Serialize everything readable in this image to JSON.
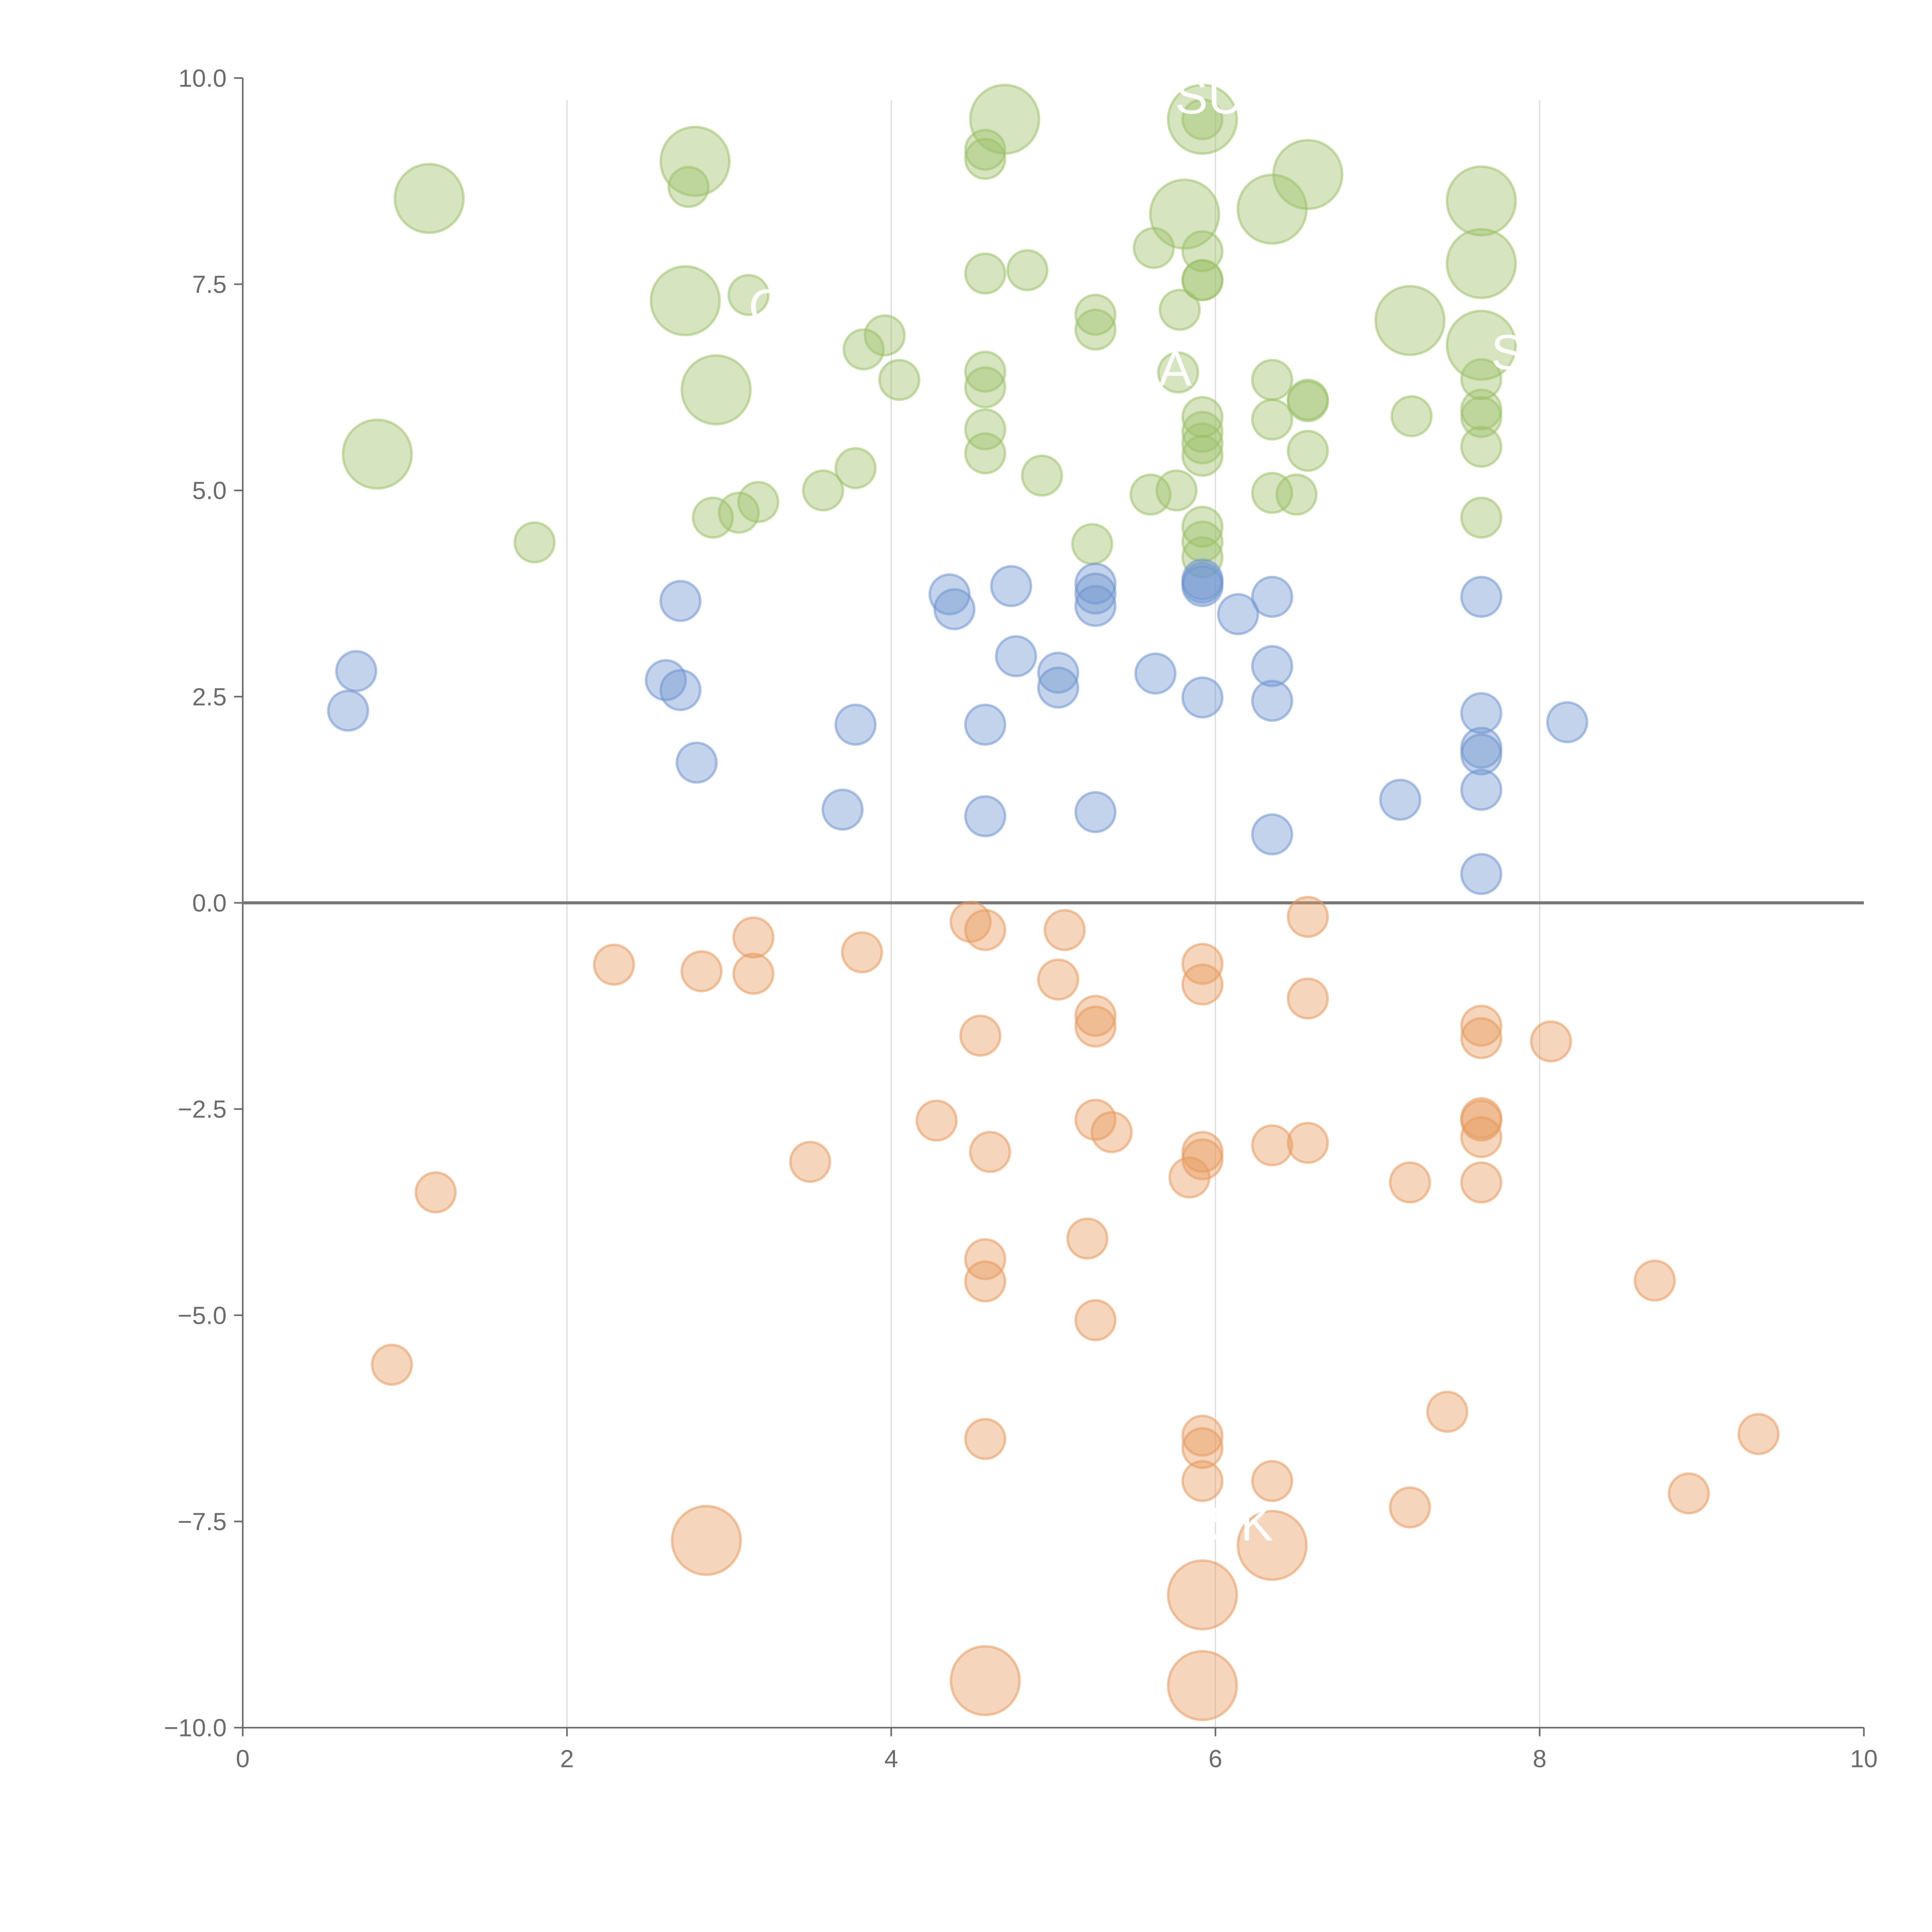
{
  "chart_data": {
    "type": "scatter",
    "title": "",
    "xlabel": "",
    "ylabel": "",
    "xlim": [
      0,
      10
    ],
    "ylim": [
      -10,
      10
    ],
    "x_ticks": [
      "0",
      "2",
      "4",
      "6",
      "8",
      "10"
    ],
    "y_ticks": [
      "10.0",
      "7.5",
      "5.0",
      "2.5",
      "0.0",
      "−2.5",
      "−5.0",
      "−7.5",
      "−10.0"
    ],
    "grid": "vertical",
    "legend": "none",
    "size_note": "point size 1 = small bubble, 3 = large bubble",
    "series": [
      {
        "name": "green",
        "color": "#9dc16a",
        "points": [
          [
            1.15,
            8.54,
            3
          ],
          [
            0.83,
            5.44,
            3
          ],
          [
            1.8,
            4.37,
            1
          ],
          [
            2.75,
            8.68,
            1
          ],
          [
            2.79,
            8.99,
            3
          ],
          [
            2.73,
            7.3,
            3
          ],
          [
            2.92,
            6.22,
            3
          ],
          [
            3.12,
            7.37,
            1
          ],
          [
            2.9,
            4.67,
            1
          ],
          [
            3.06,
            4.73,
            1
          ],
          [
            3.18,
            4.86,
            1
          ],
          [
            3.58,
            5.0,
            1
          ],
          [
            3.78,
            5.27,
            1
          ],
          [
            3.83,
            6.71,
            1
          ],
          [
            3.96,
            6.88,
            1
          ],
          [
            4.05,
            6.34,
            1
          ],
          [
            4.58,
            9.13,
            1
          ],
          [
            4.58,
            9.02,
            1
          ],
          [
            4.7,
            9.5,
            3
          ],
          [
            4.58,
            7.63,
            1
          ],
          [
            4.84,
            7.67,
            1
          ],
          [
            4.58,
            6.44,
            1
          ],
          [
            4.58,
            6.25,
            1
          ],
          [
            4.58,
            5.74,
            1
          ],
          [
            4.58,
            5.45,
            1
          ],
          [
            4.93,
            5.18,
            1
          ],
          [
            5.26,
            7.13,
            1
          ],
          [
            5.26,
            6.95,
            1
          ],
          [
            5.24,
            4.35,
            1
          ],
          [
            5.62,
            7.94,
            1
          ],
          [
            5.81,
            8.35,
            3
          ],
          [
            5.78,
            7.19,
            1
          ],
          [
            5.77,
            6.43,
            1
          ],
          [
            5.6,
            4.95,
            1
          ],
          [
            5.76,
            5.0,
            1
          ],
          [
            5.92,
            9.5,
            3
          ],
          [
            5.92,
            9.5,
            1
          ],
          [
            5.92,
            7.9,
            1
          ],
          [
            5.92,
            7.55,
            1
          ],
          [
            5.92,
            7.55,
            1
          ],
          [
            5.92,
            5.89,
            1
          ],
          [
            5.92,
            5.71,
            1
          ],
          [
            5.92,
            5.57,
            1
          ],
          [
            5.92,
            5.42,
            1
          ],
          [
            5.92,
            4.56,
            1
          ],
          [
            5.92,
            4.38,
            1
          ],
          [
            5.92,
            4.19,
            1
          ],
          [
            6.35,
            8.41,
            3
          ],
          [
            6.57,
            8.83,
            3
          ],
          [
            6.35,
            6.34,
            1
          ],
          [
            6.35,
            5.86,
            1
          ],
          [
            6.35,
            4.97,
            1
          ],
          [
            6.5,
            4.95,
            1
          ],
          [
            6.57,
            6.1,
            1
          ],
          [
            6.57,
            6.08,
            1
          ],
          [
            6.57,
            5.48,
            1
          ],
          [
            7.2,
            7.06,
            3
          ],
          [
            7.21,
            5.9,
            1
          ],
          [
            7.64,
            8.51,
            3
          ],
          [
            7.64,
            7.75,
            3
          ],
          [
            7.64,
            6.76,
            3
          ],
          [
            7.64,
            6.35,
            1
          ],
          [
            7.64,
            5.98,
            1
          ],
          [
            7.64,
            5.89,
            1
          ],
          [
            7.64,
            5.53,
            1
          ],
          [
            7.64,
            4.67,
            1
          ]
        ]
      },
      {
        "name": "blue",
        "color": "#6f95cf",
        "points": [
          [
            0.7,
            2.81,
            1
          ],
          [
            0.65,
            2.33,
            1
          ],
          [
            2.7,
            3.66,
            1
          ],
          [
            2.61,
            2.7,
            1
          ],
          [
            2.7,
            2.58,
            1
          ],
          [
            2.8,
            1.7,
            1
          ],
          [
            3.78,
            2.16,
            1
          ],
          [
            3.7,
            1.13,
            1
          ],
          [
            4.36,
            3.74,
            1
          ],
          [
            4.39,
            3.56,
            1
          ],
          [
            4.74,
            3.84,
            1
          ],
          [
            4.77,
            2.99,
            1
          ],
          [
            5.03,
            2.79,
            1
          ],
          [
            5.03,
            2.61,
            1
          ],
          [
            4.58,
            2.16,
            1
          ],
          [
            4.58,
            1.05,
            1
          ],
          [
            5.26,
            3.87,
            1
          ],
          [
            5.26,
            3.75,
            1
          ],
          [
            5.26,
            3.6,
            1
          ],
          [
            5.26,
            1.1,
            1
          ],
          [
            5.63,
            2.78,
            1
          ],
          [
            5.92,
            3.92,
            1
          ],
          [
            5.92,
            3.84,
            1
          ],
          [
            5.92,
            3.88,
            1
          ],
          [
            5.92,
            2.49,
            1
          ],
          [
            6.14,
            3.5,
            1
          ],
          [
            6.35,
            3.71,
            1
          ],
          [
            6.35,
            2.87,
            1
          ],
          [
            6.35,
            2.45,
            1
          ],
          [
            6.35,
            0.83,
            1
          ],
          [
            7.14,
            1.25,
            1
          ],
          [
            7.64,
            3.71,
            1
          ],
          [
            7.64,
            2.3,
            1
          ],
          [
            7.64,
            1.88,
            1
          ],
          [
            7.64,
            1.8,
            1
          ],
          [
            7.64,
            1.37,
            1
          ],
          [
            7.64,
            0.35,
            1
          ],
          [
            8.17,
            2.19,
            1
          ]
        ]
      },
      {
        "name": "orange",
        "color": "#e69a5e",
        "points": [
          [
            2.29,
            -0.75,
            1
          ],
          [
            2.83,
            -0.83,
            1
          ],
          [
            3.15,
            -0.42,
            1
          ],
          [
            3.15,
            -0.86,
            1
          ],
          [
            3.82,
            -0.6,
            1
          ],
          [
            4.49,
            -0.23,
            1
          ],
          [
            4.58,
            -0.33,
            1
          ],
          [
            5.07,
            -0.33,
            1
          ],
          [
            5.03,
            -0.93,
            1
          ],
          [
            4.55,
            -1.61,
            1
          ],
          [
            5.26,
            -1.37,
            1
          ],
          [
            5.26,
            -1.5,
            1
          ],
          [
            5.92,
            -0.74,
            1
          ],
          [
            5.92,
            -0.99,
            1
          ],
          [
            6.57,
            -0.17,
            1
          ],
          [
            6.57,
            -1.16,
            1
          ],
          [
            7.64,
            -1.49,
            1
          ],
          [
            7.64,
            -1.64,
            1
          ],
          [
            8.07,
            -1.68,
            1
          ],
          [
            4.28,
            -2.64,
            1
          ],
          [
            3.5,
            -3.14,
            1
          ],
          [
            4.61,
            -3.02,
            1
          ],
          [
            5.26,
            -2.63,
            1
          ],
          [
            5.36,
            -2.78,
            1
          ],
          [
            5.84,
            -3.33,
            1
          ],
          [
            5.92,
            -3.02,
            1
          ],
          [
            5.92,
            -3.11,
            1
          ],
          [
            6.35,
            -2.94,
            1
          ],
          [
            6.57,
            -2.91,
            1
          ],
          [
            7.2,
            -3.39,
            1
          ],
          [
            7.64,
            -2.61,
            1
          ],
          [
            7.64,
            -2.64,
            1
          ],
          [
            7.64,
            -2.84,
            1
          ],
          [
            7.64,
            -3.39,
            1
          ],
          [
            1.19,
            -3.51,
            1
          ],
          [
            0.92,
            -5.6,
            1
          ],
          [
            5.21,
            -4.07,
            1
          ],
          [
            4.58,
            -4.32,
            1
          ],
          [
            4.58,
            -4.59,
            1
          ],
          [
            5.26,
            -5.06,
            1
          ],
          [
            8.71,
            -4.58,
            1
          ],
          [
            4.58,
            -6.5,
            1
          ],
          [
            5.92,
            -6.46,
            1
          ],
          [
            5.92,
            -6.61,
            1
          ],
          [
            5.92,
            -7.01,
            1
          ],
          [
            6.35,
            -7.01,
            1
          ],
          [
            7.43,
            -6.17,
            1
          ],
          [
            7.2,
            -7.33,
            1
          ],
          [
            8.92,
            -7.16,
            1
          ],
          [
            9.35,
            -6.44,
            1
          ],
          [
            2.86,
            -7.73,
            3
          ],
          [
            6.35,
            -7.79,
            3
          ],
          [
            5.92,
            -8.39,
            3
          ],
          [
            4.58,
            -9.43,
            3
          ],
          [
            5.92,
            -9.49,
            3
          ]
        ]
      }
    ],
    "annotations": [
      {
        "text": "SU",
        "x": 5.75,
        "y": 9.75
      },
      {
        "text": "C",
        "x": 3.12,
        "y": 7.2
      },
      {
        "text": "S",
        "x": 7.7,
        "y": 6.65
      },
      {
        "text": "A",
        "x": 5.65,
        "y": 6.45
      },
      {
        "text": "SK",
        "x": 5.95,
        "y": -7.55
      }
    ]
  }
}
